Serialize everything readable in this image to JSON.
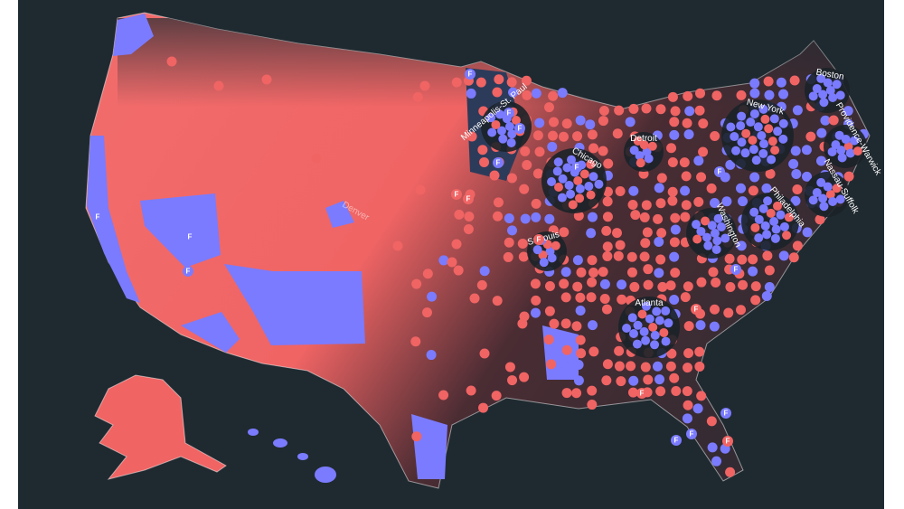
{
  "map": {
    "marker": "F",
    "cities": [
      {
        "label": "Minneapolis-St. Paul"
      },
      {
        "label": "Detroit"
      },
      {
        "label": "Chicago"
      },
      {
        "label": "New York"
      },
      {
        "label": "Boston"
      },
      {
        "label": "Providence-Warwick"
      },
      {
        "label": "Nassau-Suffolk"
      },
      {
        "label": "Philadelphia"
      },
      {
        "label": "Washington"
      },
      {
        "label": "St Louis"
      },
      {
        "label": "Atlanta"
      },
      {
        "label": "Denver"
      }
    ]
  }
}
